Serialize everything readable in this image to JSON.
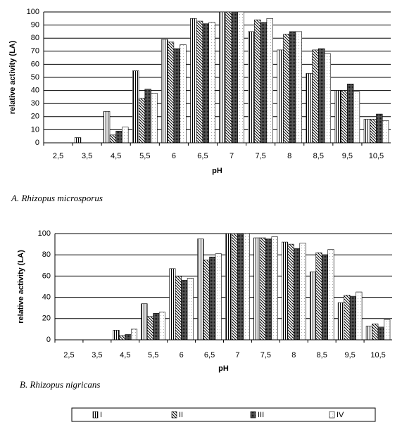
{
  "chart_data": [
    {
      "type": "bar",
      "caption": "A.  Rhizopus microsporus",
      "x_label": "pH",
      "y_label": "relative activity (LA)",
      "categories": [
        "2,5",
        "3,5",
        "4,5",
        "5,5",
        "6",
        "6,5",
        "7",
        "7,5",
        "8",
        "8,5",
        "9,5",
        "10,5"
      ],
      "series": [
        {
          "name": "I",
          "pattern": "vertical",
          "values": [
            0,
            4,
            24,
            55,
            79,
            95,
            100,
            85,
            71,
            53,
            40,
            18
          ]
        },
        {
          "name": "II",
          "pattern": "diagonal",
          "values": [
            0,
            0,
            6,
            34,
            77,
            93,
            100,
            94,
            83,
            71,
            40,
            18
          ]
        },
        {
          "name": "III",
          "pattern": "dark-dots",
          "values": [
            0,
            0,
            9,
            41,
            72,
            91,
            100,
            92,
            85,
            72,
            45,
            22
          ]
        },
        {
          "name": "IV",
          "pattern": "light-dots",
          "values": [
            0,
            0,
            12,
            38,
            75,
            92,
            100,
            95,
            85,
            68,
            39,
            17
          ]
        }
      ],
      "ylim": [
        0,
        100
      ],
      "yticks": [
        0,
        10,
        20,
        30,
        40,
        50,
        60,
        70,
        80,
        90,
        100
      ],
      "grid": true
    },
    {
      "type": "bar",
      "caption": "B. Rhizopus nigricans",
      "x_label": "pH",
      "y_label": "relative activity (LA)",
      "categories": [
        "2,5",
        "3,5",
        "4,5",
        "5,5",
        "6",
        "6,5",
        "7",
        "7,5",
        "8",
        "8,5",
        "9,5",
        "10,5"
      ],
      "series": [
        {
          "name": "I",
          "pattern": "vertical",
          "values": [
            0,
            0,
            9,
            34,
            67,
            95,
            100,
            96,
            92,
            64,
            35,
            13
          ]
        },
        {
          "name": "II",
          "pattern": "diagonal",
          "values": [
            0,
            0,
            4,
            22,
            60,
            75,
            100,
            96,
            90,
            82,
            42,
            15
          ]
        },
        {
          "name": "III",
          "pattern": "dark-dots",
          "values": [
            0,
            0,
            5,
            25,
            56,
            78,
            100,
            95,
            86,
            80,
            41,
            12
          ]
        },
        {
          "name": "IV",
          "pattern": "light-dots",
          "values": [
            0,
            0,
            10,
            26,
            58,
            81,
            100,
            97,
            91,
            85,
            45,
            19
          ]
        }
      ],
      "ylim": [
        0,
        100
      ],
      "yticks": [
        0,
        20,
        40,
        60,
        80,
        100
      ],
      "grid": true
    }
  ]
}
